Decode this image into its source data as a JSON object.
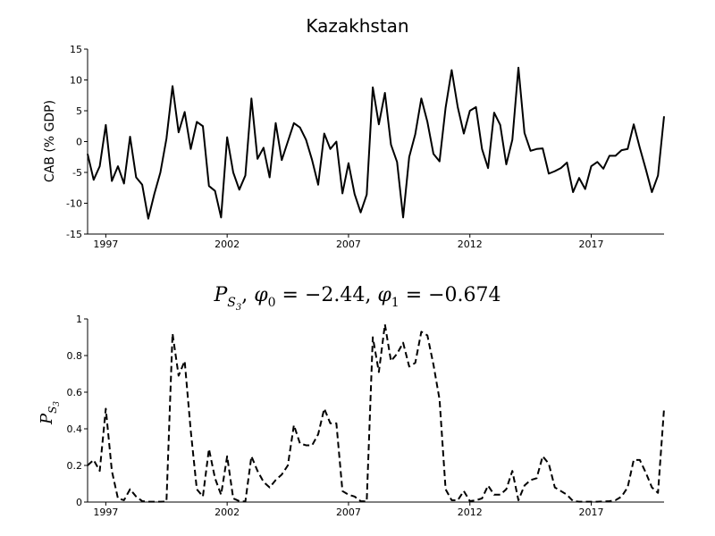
{
  "chart_data": [
    {
      "type": "line",
      "title": "Kazakhstan",
      "xlabel": "",
      "ylabel": "CAB (% GDP)",
      "xlim": [
        1996.25,
        2020.0
      ],
      "ylim": [
        -15,
        15
      ],
      "yticks": [
        -15,
        -10,
        -5,
        0,
        5,
        10,
        15
      ],
      "xticks": [
        1997,
        2002,
        2007,
        2012,
        2017
      ],
      "grid": false,
      "series": [
        {
          "style": "solid",
          "x": [
            1996.25,
            1996.5,
            1996.75,
            1997,
            1997.25,
            1997.5,
            1997.75,
            1998,
            1998.25,
            1998.5,
            1998.75,
            1999,
            1999.25,
            1999.5,
            1999.75,
            2000,
            2000.25,
            2000.5,
            2000.75,
            2001,
            2001.25,
            2001.5,
            2001.75,
            2002,
            2002.25,
            2002.5,
            2002.75,
            2003,
            2003.25,
            2003.5,
            2003.75,
            2004,
            2004.25,
            2004.5,
            2004.75,
            2005,
            2005.25,
            2005.5,
            2005.75,
            2006,
            2006.25,
            2006.5,
            2006.75,
            2007,
            2007.25,
            2007.5,
            2007.75,
            2008,
            2008.25,
            2008.5,
            2008.75,
            2009,
            2009.25,
            2009.5,
            2009.75,
            2010,
            2010.25,
            2010.5,
            2010.75,
            2011,
            2011.25,
            2011.5,
            2011.75,
            2012,
            2012.25,
            2012.5,
            2012.75,
            2013,
            2013.25,
            2013.5,
            2013.75,
            2014,
            2014.25,
            2014.5,
            2014.75,
            2015,
            2015.25,
            2015.5,
            2015.75,
            2016,
            2016.25,
            2016.5,
            2016.75,
            2017,
            2017.25,
            2017.5,
            2017.75,
            2018,
            2018.25,
            2018.5,
            2018.75,
            2019,
            2019.25,
            2019.5,
            2019.75,
            2020
          ],
          "values": [
            -2,
            -6.2,
            -4,
            2.7,
            -6.4,
            -4,
            -6.8,
            0.8,
            -5.8,
            -7,
            -12.5,
            -8.5,
            -5,
            0.5,
            9,
            1.5,
            4.8,
            -1.2,
            3.2,
            2.5,
            -7.2,
            -8,
            -12.3,
            0.7,
            -5,
            -7.8,
            -5.5,
            7,
            -2.8,
            -1,
            -5.8,
            3,
            -3,
            0,
            3,
            2.3,
            0.3,
            -3,
            -7,
            1.3,
            -1.2,
            0,
            -8.4,
            -3.5,
            -8.5,
            -11.5,
            -8.6,
            8.8,
            2.8,
            7.9,
            -0.5,
            -3.3,
            -12.3,
            -2.5,
            1.2,
            7,
            3.2,
            -2,
            -3.2,
            5.5,
            11.6,
            5.6,
            1.3,
            5,
            5.6,
            -1.2,
            -4.3,
            4.7,
            2.7,
            -3.7,
            0.3,
            12,
            1.4,
            -1.5,
            -1.2,
            -1.1,
            -5.2,
            -4.8,
            -4.3,
            -3.4,
            -8.2,
            -5.9,
            -7.7,
            -4,
            -3.3,
            -4.4,
            -2.3,
            -2.3,
            -1.4,
            -1.2,
            2.8,
            -1,
            -4.5,
            -8.2,
            -5.5,
            4.1
          ]
        }
      ]
    },
    {
      "type": "line",
      "title": "P_{S_3}, φ_0 = −2.44, φ_1 = −0.674",
      "xlabel": "",
      "ylabel": "P_{S_3}",
      "xlim": [
        1996.25,
        2020.0
      ],
      "ylim": [
        0,
        1
      ],
      "yticks": [
        0,
        0.2,
        0.4,
        0.6,
        0.8,
        1
      ],
      "xticks": [
        1997,
        2002,
        2007,
        2012,
        2017
      ],
      "grid": false,
      "series": [
        {
          "style": "dashed",
          "x": [
            1996.25,
            1996.5,
            1996.75,
            1997,
            1997.25,
            1997.5,
            1997.75,
            1998,
            1998.25,
            1998.5,
            1998.75,
            1999,
            1999.25,
            1999.5,
            1999.75,
            2000,
            2000.25,
            2000.5,
            2000.75,
            2001,
            2001.25,
            2001.5,
            2001.75,
            2002,
            2002.25,
            2002.5,
            2002.75,
            2003,
            2003.25,
            2003.5,
            2003.75,
            2004,
            2004.25,
            2004.5,
            2004.75,
            2005,
            2005.25,
            2005.5,
            2005.75,
            2006,
            2006.25,
            2006.5,
            2006.75,
            2007,
            2007.25,
            2007.5,
            2007.75,
            2008,
            2008.25,
            2008.5,
            2008.75,
            2009,
            2009.25,
            2009.5,
            2009.75,
            2010,
            2010.25,
            2010.5,
            2010.75,
            2011,
            2011.25,
            2011.5,
            2011.75,
            2012,
            2012.25,
            2012.5,
            2012.75,
            2013,
            2013.25,
            2013.5,
            2013.75,
            2014,
            2014.25,
            2014.5,
            2014.75,
            2015,
            2015.25,
            2015.5,
            2015.75,
            2016,
            2016.25,
            2016.5,
            2016.75,
            2017,
            2017.25,
            2017.5,
            2017.75,
            2018,
            2018.25,
            2018.5,
            2018.75,
            2019,
            2019.25,
            2019.5,
            2019.75,
            2020
          ],
          "values": [
            0.2,
            0.23,
            0.17,
            0.51,
            0.17,
            0.02,
            0.01,
            0.07,
            0.03,
            0.005,
            0.002,
            0.002,
            0.002,
            0.003,
            0.92,
            0.69,
            0.77,
            0.39,
            0.07,
            0.03,
            0.29,
            0.13,
            0.04,
            0.25,
            0.02,
            0.005,
            0.003,
            0.25,
            0.17,
            0.11,
            0.08,
            0.12,
            0.15,
            0.2,
            0.42,
            0.32,
            0.31,
            0.31,
            0.37,
            0.51,
            0.43,
            0.43,
            0.06,
            0.04,
            0.03,
            0.005,
            0.003,
            0.9,
            0.71,
            0.97,
            0.77,
            0.81,
            0.87,
            0.74,
            0.76,
            0.93,
            0.91,
            0.75,
            0.56,
            0.07,
            0.01,
            0.01,
            0.06,
            0.005,
            0.01,
            0.02,
            0.09,
            0.04,
            0.04,
            0.07,
            0.17,
            0.01,
            0.09,
            0.12,
            0.13,
            0.25,
            0.21,
            0.08,
            0.06,
            0.04,
            0.005,
            0.002,
            0.002,
            0.002,
            0.002,
            0.003,
            0.005,
            0.01,
            0.03,
            0.08,
            0.23,
            0.23,
            0.16,
            0.08,
            0.05,
            0.51
          ]
        }
      ]
    }
  ]
}
